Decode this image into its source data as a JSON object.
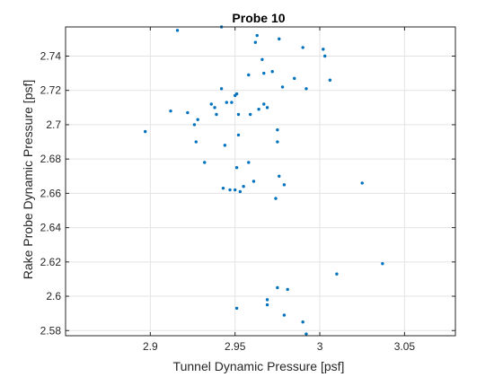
{
  "chart_data": {
    "type": "scatter",
    "title": "Probe 10",
    "xlabel": "Tunnel Dynamic Pressure [psf]",
    "ylabel": "Rake Probe Dynamic Pressure [psf]",
    "xlim": [
      2.85,
      3.08
    ],
    "ylim": [
      2.577,
      2.757
    ],
    "xticks": [
      2.9,
      2.95,
      3.0,
      3.05
    ],
    "xtick_labels": [
      "2.9",
      "2.95",
      "3",
      "3.05"
    ],
    "yticks": [
      2.58,
      2.6,
      2.62,
      2.64,
      2.66,
      2.68,
      2.7,
      2.72,
      2.74
    ],
    "ytick_labels": [
      "2.58",
      "2.6",
      "2.62",
      "2.64",
      "2.66",
      "2.68",
      "2.7",
      "2.72",
      "2.74"
    ],
    "grid": true,
    "marker_color": "#0072BD",
    "series": [
      {
        "points": [
          [
            2.916,
            2.755
          ],
          [
            2.942,
            2.757
          ],
          [
            2.963,
            2.752
          ],
          [
            2.976,
            2.75
          ],
          [
            2.962,
            2.748
          ],
          [
            2.99,
            2.745
          ],
          [
            3.002,
            2.744
          ],
          [
            3.003,
            2.74
          ],
          [
            2.966,
            2.738
          ],
          [
            2.972,
            2.731
          ],
          [
            2.967,
            2.73
          ],
          [
            2.958,
            2.729
          ],
          [
            2.985,
            2.727
          ],
          [
            3.006,
            2.726
          ],
          [
            2.942,
            2.721
          ],
          [
            2.978,
            2.722
          ],
          [
            2.992,
            2.721
          ],
          [
            2.951,
            2.718
          ],
          [
            2.95,
            2.717
          ],
          [
            2.945,
            2.713
          ],
          [
            2.948,
            2.713
          ],
          [
            2.967,
            2.712
          ],
          [
            2.936,
            2.712
          ],
          [
            2.938,
            2.71
          ],
          [
            2.969,
            2.71
          ],
          [
            2.964,
            2.709
          ],
          [
            2.912,
            2.708
          ],
          [
            2.922,
            2.707
          ],
          [
            2.939,
            2.706
          ],
          [
            2.952,
            2.706
          ],
          [
            2.959,
            2.706
          ],
          [
            2.928,
            2.703
          ],
          [
            2.926,
            2.7
          ],
          [
            2.897,
            2.696
          ],
          [
            2.975,
            2.697
          ],
          [
            2.952,
            2.694
          ],
          [
            2.927,
            2.69
          ],
          [
            2.975,
            2.69
          ],
          [
            2.944,
            2.688
          ],
          [
            2.932,
            2.678
          ],
          [
            2.958,
            2.678
          ],
          [
            2.951,
            2.675
          ],
          [
            2.976,
            2.67
          ],
          [
            2.961,
            2.667
          ],
          [
            2.979,
            2.665
          ],
          [
            3.025,
            2.666
          ],
          [
            2.955,
            2.664
          ],
          [
            2.943,
            2.663
          ],
          [
            2.947,
            2.662
          ],
          [
            2.95,
            2.662
          ],
          [
            2.953,
            2.661
          ],
          [
            2.974,
            2.657
          ],
          [
            3.037,
            2.619
          ],
          [
            3.01,
            2.613
          ],
          [
            2.975,
            2.605
          ],
          [
            2.981,
            2.604
          ],
          [
            2.969,
            2.598
          ],
          [
            2.969,
            2.595
          ],
          [
            2.951,
            2.593
          ],
          [
            2.979,
            2.589
          ],
          [
            2.99,
            2.585
          ],
          [
            2.992,
            2.578
          ]
        ]
      }
    ]
  }
}
